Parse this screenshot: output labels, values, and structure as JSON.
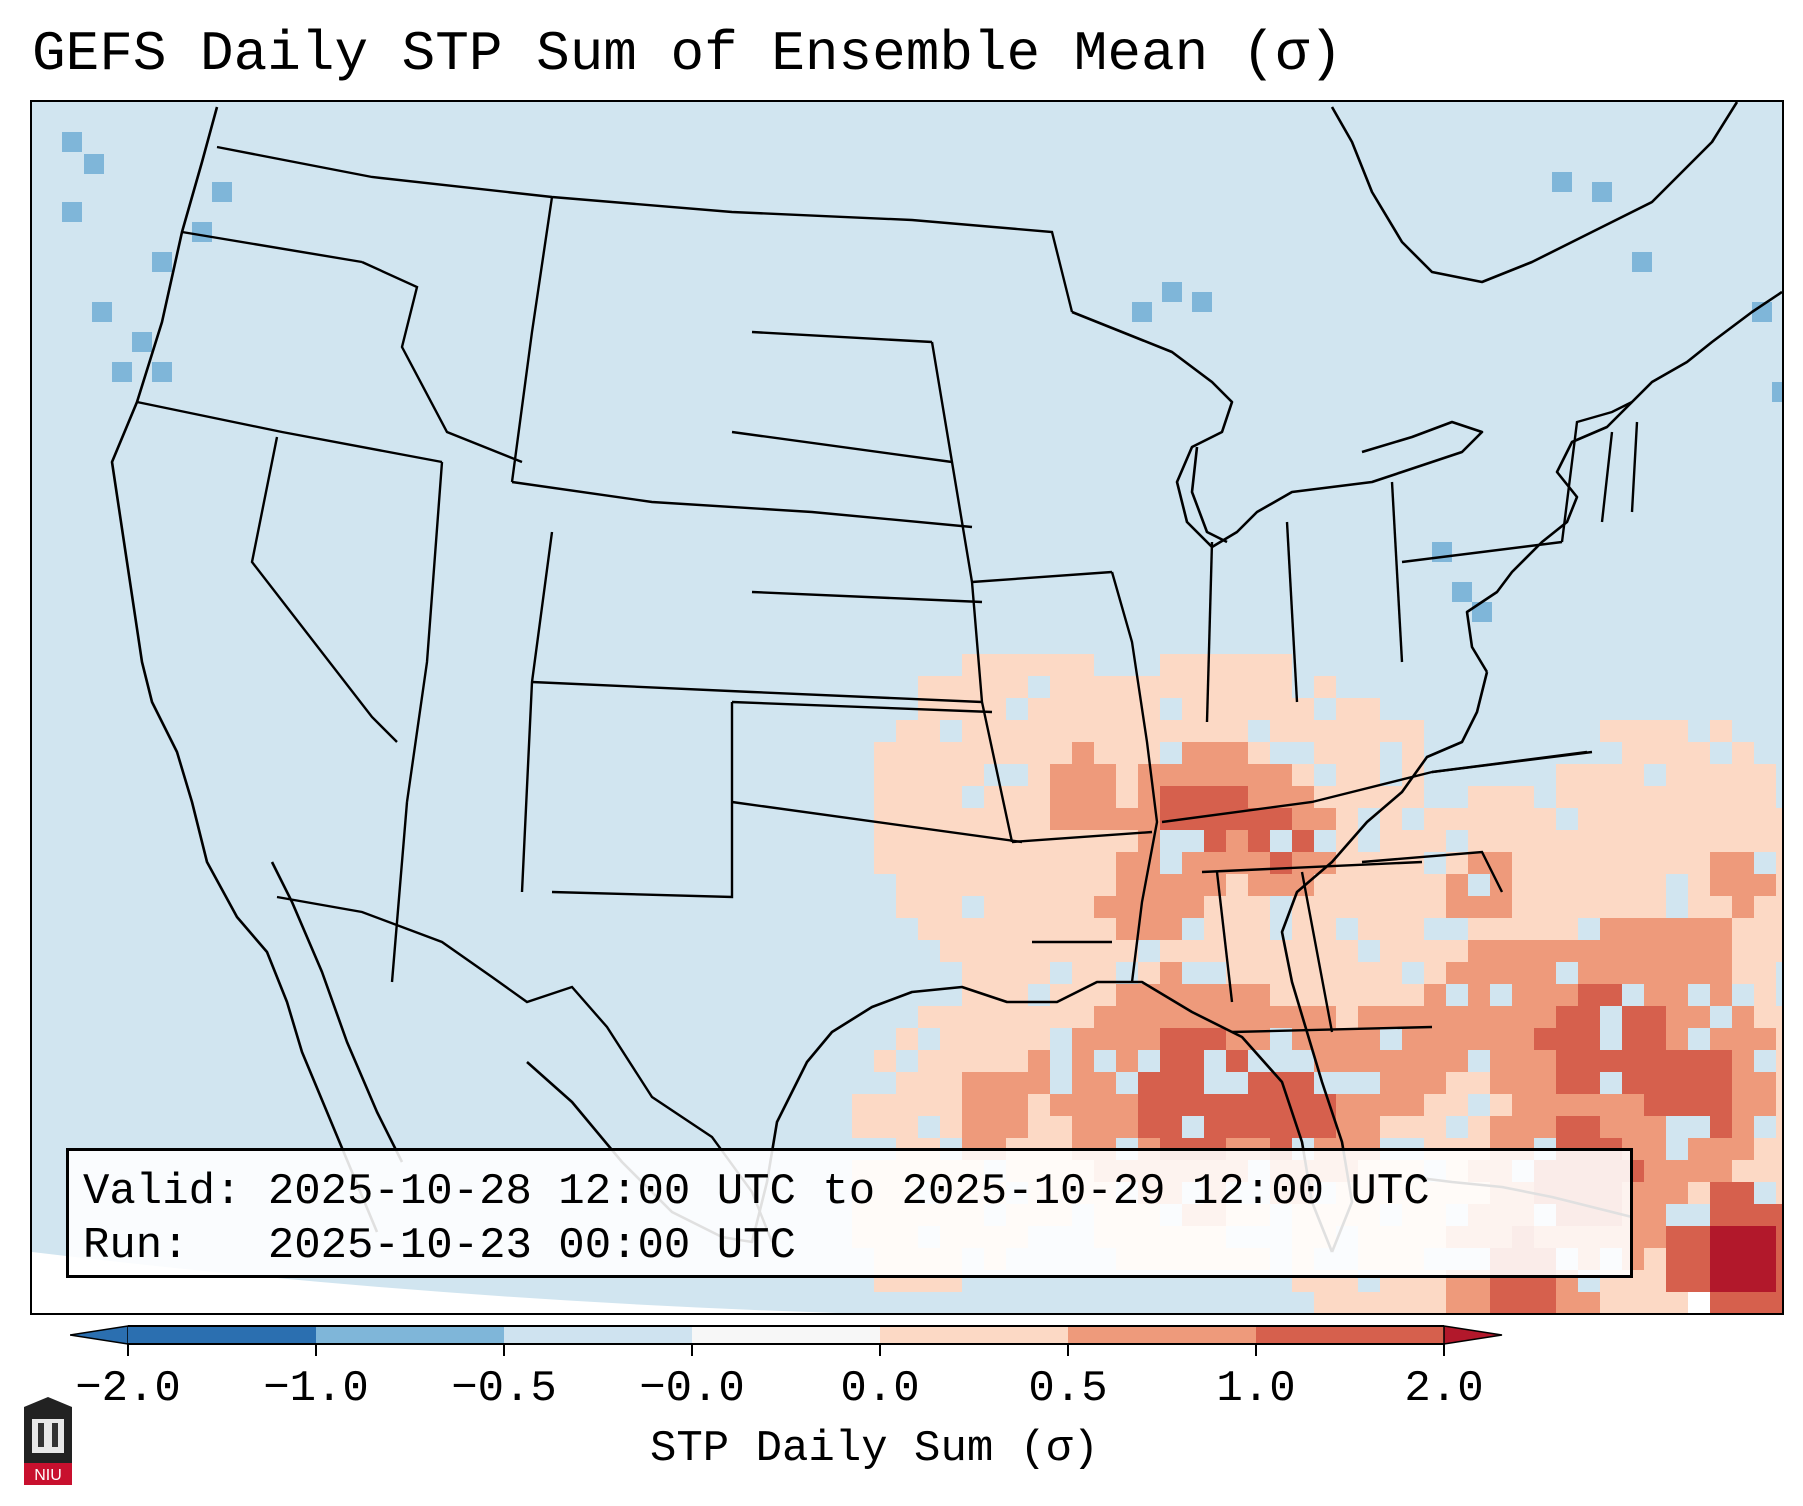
{
  "title": "GEFS Daily STP Sum of Ensemble Mean (σ)",
  "info_box": {
    "valid_label": "Valid:",
    "valid_text": "2025-10-28 12:00 UTC to 2025-10-29 12:00 UTC",
    "run_label": "Run:",
    "run_text": "2025-10-23 00:00 UTC"
  },
  "colorbar": {
    "label": "STP Daily Sum (σ)",
    "ticks": [
      "−2.0",
      "−1.0",
      "−0.5",
      "−0.0",
      "0.0",
      "0.5",
      "1.0",
      "2.0"
    ],
    "colors": [
      "#2b6fb0",
      "#7fb6d9",
      "#cfe3f0",
      "#f7f7f7",
      "#fcd9c5",
      "#ee9a7b",
      "#d6604d",
      "#b2182b"
    ]
  },
  "map": {
    "region": "Continental United States",
    "background_color": "#d1e5f0",
    "outside_domain_color": "#ffffff"
  },
  "logo": {
    "text": "NIU"
  }
}
